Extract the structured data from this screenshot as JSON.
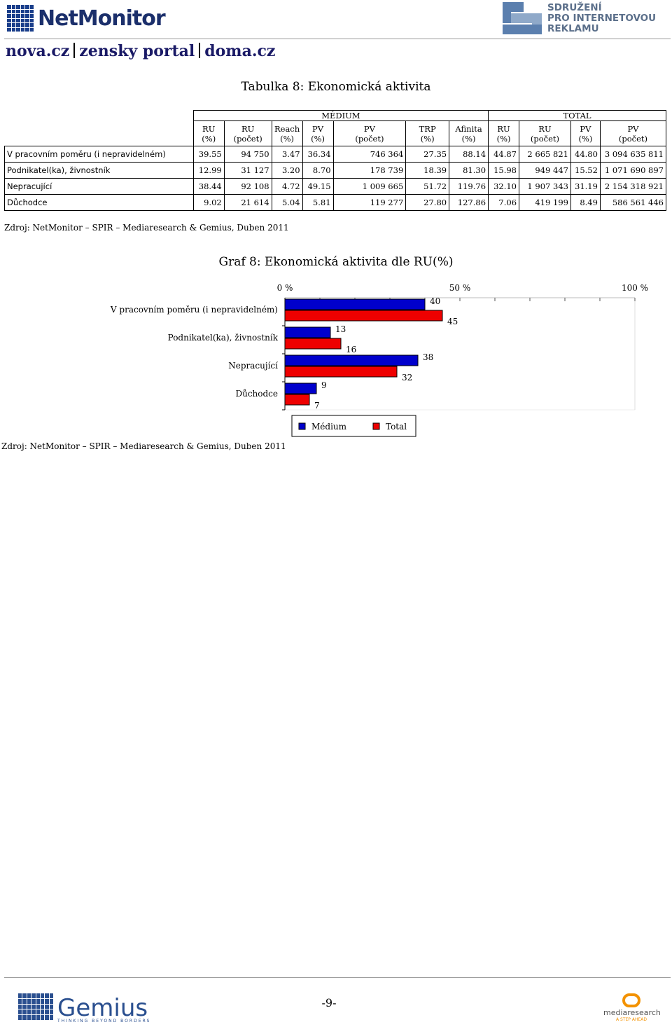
{
  "header": {
    "logo_text": "NetMonitor",
    "partner_logo_lines": [
      "SDRUŽENÍ",
      "PRO INTERNETOVOU",
      "REKLAMU"
    ],
    "sites": [
      "nova.cz",
      "zensky portal",
      "doma.cz"
    ]
  },
  "table": {
    "title": "Tabulka 8: Ekonomická aktivita",
    "group_headers": {
      "medium": "MÉDIUM",
      "total": "TOTAL"
    },
    "columns": [
      {
        "top": "RU",
        "bottom": "(%)"
      },
      {
        "top": "RU",
        "bottom": "(počet)"
      },
      {
        "top": "Reach",
        "bottom": "(%)"
      },
      {
        "top": "PV",
        "bottom": "(%)"
      },
      {
        "top": "PV",
        "bottom": "(počet)"
      },
      {
        "top": "TRP",
        "bottom": "(%)"
      },
      {
        "top": "Afinita",
        "bottom": "(%)"
      },
      {
        "top": "RU",
        "bottom": "(%)"
      },
      {
        "top": "RU",
        "bottom": "(počet)"
      },
      {
        "top": "PV",
        "bottom": "(%)"
      },
      {
        "top": "PV",
        "bottom": "(počet)"
      }
    ],
    "rows": [
      {
        "label": "V pracovním poměru (i nepravidelném)",
        "cells": [
          "39.55",
          "94 750",
          "3.47",
          "36.34",
          "746 364",
          "27.35",
          "88.14",
          "44.87",
          "2 665 821",
          "44.80",
          "3 094 635 811"
        ]
      },
      {
        "label": "Podnikatel(ka), živnostník",
        "cells": [
          "12.99",
          "31 127",
          "3.20",
          "8.70",
          "178 739",
          "18.39",
          "81.30",
          "15.98",
          "949 447",
          "15.52",
          "1 071 690 897"
        ]
      },
      {
        "label": "Nepracující",
        "cells": [
          "38.44",
          "92 108",
          "4.72",
          "49.15",
          "1 009 665",
          "51.72",
          "119.76",
          "32.10",
          "1 907 343",
          "31.19",
          "2 154 318 921"
        ]
      },
      {
        "label": "Důchodce",
        "cells": [
          "9.02",
          "21 614",
          "5.04",
          "5.81",
          "119 277",
          "27.80",
          "127.86",
          "7.06",
          "419 199",
          "8.49",
          "586 561 446"
        ]
      }
    ],
    "source": "Zdroj: NetMonitor – SPIR – Mediaresearch & Gemius, Duben 2011"
  },
  "chart": {
    "title": "Graf 8: Ekonomická aktivita dle RU(%)",
    "source": "Zdroj: NetMonitor – SPIR – Mediaresearch & Gemius, Duben 2011"
  },
  "chart_data": {
    "type": "bar",
    "orientation": "horizontal",
    "title": "Graf 8: Ekonomická aktivita dle RU(%)",
    "categories": [
      "V pracovním poměru (i nepravidelném)",
      "Podnikatel(ka), živnostník",
      "Nepracující",
      "Důchodce"
    ],
    "series": [
      {
        "name": "Médium",
        "color": "#0000cc",
        "values": [
          40,
          13,
          38,
          9
        ]
      },
      {
        "name": "Total",
        "color": "#ee0000",
        "values": [
          45,
          16,
          32,
          7
        ]
      }
    ],
    "xlim": [
      0,
      100
    ],
    "x_tick_labels": [
      "0 %",
      "50 %",
      "100 %"
    ],
    "legend": "bottom",
    "grid": false
  },
  "footer": {
    "page_number": "-9-",
    "left_logo": "Gemius",
    "left_tagline": "THINKING BEYOND BORDERS",
    "right_logo": "mediaresearch",
    "right_tagline": "A STEP AHEAD"
  }
}
